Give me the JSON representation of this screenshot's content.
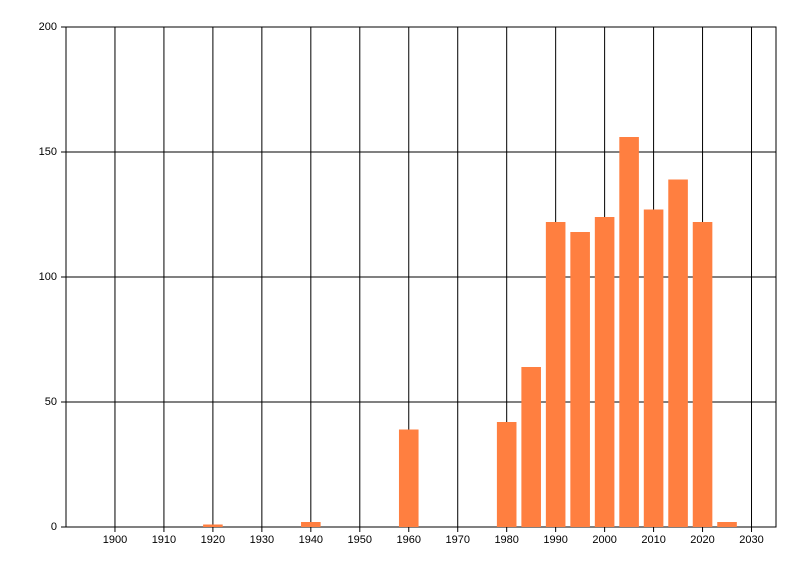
{
  "chart_data": {
    "type": "bar",
    "x": [
      1920,
      1940,
      1960,
      1980,
      1985,
      1990,
      1995,
      2000,
      2005,
      2010,
      2015,
      2020,
      2025
    ],
    "values": [
      1,
      2,
      39,
      42,
      64,
      122,
      118,
      124,
      156,
      127,
      139,
      122,
      2
    ],
    "color": "#ff7f40",
    "bar_width_years": 4,
    "xlim": [
      1890,
      2035
    ],
    "xticks": [
      1900,
      1910,
      1920,
      1930,
      1940,
      1950,
      1960,
      1970,
      1980,
      1990,
      2000,
      2010,
      2020,
      2030
    ],
    "ylim": [
      0,
      200
    ],
    "yticks": [
      0,
      50,
      100,
      150,
      200
    ],
    "grid": true
  }
}
